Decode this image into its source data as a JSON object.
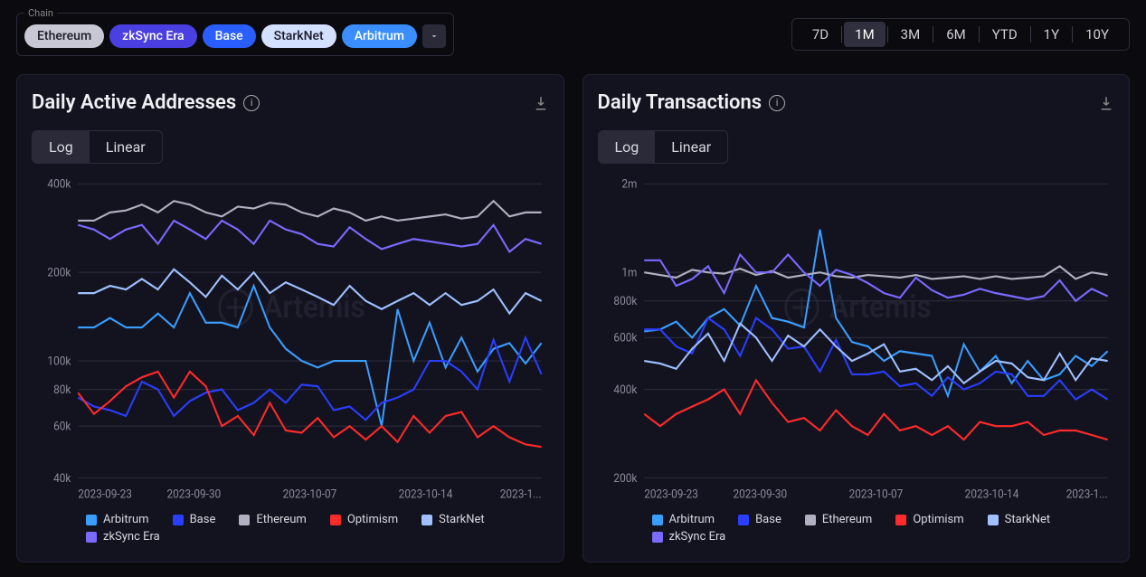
{
  "colors": {
    "bg": "#0a0a0f",
    "panel_bg": "#131320",
    "panel_border": "#222232",
    "grid": "#2a2a38",
    "tick_text": "#8a8a9a",
    "text": "#e5e5e8",
    "watermark": "#2a2a38"
  },
  "chain_filter": {
    "label": "Chain",
    "chips": [
      {
        "id": "ethereum",
        "label": "Ethereum",
        "bg": "#c8c8d4",
        "fg": "#1a1a28"
      },
      {
        "id": "zksync",
        "label": "zkSync Era",
        "bg": "#4a3fe0",
        "fg": "#ffffff"
      },
      {
        "id": "base",
        "label": "Base",
        "bg": "#2a5eff",
        "fg": "#ffffff"
      },
      {
        "id": "starknet",
        "label": "StarkNet",
        "bg": "#d4e0ff",
        "fg": "#1a1a28"
      },
      {
        "id": "arbitrum",
        "label": "Arbitrum",
        "bg": "#3a8eff",
        "fg": "#ffffff"
      }
    ]
  },
  "range_selector": {
    "options": [
      "7D",
      "1M",
      "3M",
      "6M",
      "YTD",
      "1Y",
      "10Y"
    ],
    "active": "1M"
  },
  "watermark_text": "Artemis",
  "scale_toggle": {
    "log": "Log",
    "linear": "Linear",
    "active": "Log"
  },
  "series_meta": [
    {
      "key": "arbitrum",
      "label": "Arbitrum",
      "color": "#3a9eff"
    },
    {
      "key": "base",
      "label": "Base",
      "color": "#2a3eff"
    },
    {
      "key": "ethereum",
      "label": "Ethereum",
      "color": "#b0b0c0"
    },
    {
      "key": "optimism",
      "label": "Optimism",
      "color": "#ff2a2a"
    },
    {
      "key": "starknet",
      "label": "StarkNet",
      "color": "#a0c0ff"
    },
    {
      "key": "zksync",
      "label": "zkSync Era",
      "color": "#7a6aff"
    }
  ],
  "panels": [
    {
      "id": "daa",
      "title": "Daily Active Addresses",
      "scale": "log",
      "ylim": [
        40000,
        400000
      ],
      "yticks": [
        {
          "v": 40000,
          "label": "40k"
        },
        {
          "v": 60000,
          "label": "60k"
        },
        {
          "v": 80000,
          "label": "80k"
        },
        {
          "v": 100000,
          "label": "100k"
        },
        {
          "v": 200000,
          "label": "200k"
        },
        {
          "v": 400000,
          "label": "400k"
        }
      ],
      "xlabels": [
        "2023-09-23",
        "2023-09-30",
        "2023-10-07",
        "2023-10-14",
        "2023-1..."
      ],
      "n_points": 30,
      "series": {
        "ethereum": [
          300000,
          300000,
          320000,
          325000,
          340000,
          320000,
          350000,
          340000,
          320000,
          310000,
          335000,
          330000,
          345000,
          340000,
          320000,
          310000,
          330000,
          320000,
          300000,
          310000,
          300000,
          305000,
          310000,
          315000,
          305000,
          310000,
          350000,
          310000,
          320000,
          320000
        ],
        "zksync": [
          290000,
          280000,
          260000,
          280000,
          290000,
          250000,
          300000,
          280000,
          260000,
          300000,
          280000,
          250000,
          300000,
          280000,
          270000,
          250000,
          245000,
          285000,
          260000,
          240000,
          250000,
          260000,
          255000,
          250000,
          245000,
          250000,
          290000,
          235000,
          260000,
          250000
        ],
        "starknet": [
          170000,
          170000,
          180000,
          175000,
          190000,
          175000,
          205000,
          185000,
          165000,
          195000,
          175000,
          200000,
          170000,
          185000,
          175000,
          165000,
          155000,
          180000,
          160000,
          150000,
          160000,
          170000,
          155000,
          170000,
          155000,
          160000,
          175000,
          145000,
          170000,
          160000
        ],
        "arbitrum": [
          130000,
          130000,
          140000,
          130000,
          130000,
          145000,
          130000,
          170000,
          135000,
          135000,
          130000,
          180000,
          130000,
          110000,
          100000,
          95000,
          100000,
          100000,
          100000,
          60000,
          150000,
          100000,
          135000,
          95000,
          120000,
          92000,
          110000,
          115000,
          98000,
          115000
        ],
        "base": [
          75000,
          70000,
          68000,
          65000,
          85000,
          80000,
          65000,
          73000,
          78000,
          80000,
          68000,
          72000,
          80000,
          72000,
          83000,
          82000,
          68000,
          70000,
          63000,
          72000,
          75000,
          80000,
          100000,
          100000,
          92000,
          80000,
          118000,
          85000,
          120000,
          90000
        ],
        "optimism": [
          78000,
          66000,
          73000,
          82000,
          88000,
          92000,
          75000,
          92000,
          82000,
          60000,
          65000,
          56000,
          72000,
          58000,
          57000,
          64000,
          55000,
          60000,
          54000,
          60000,
          53000,
          65000,
          57000,
          65000,
          67000,
          55000,
          60000,
          55000,
          52000,
          51000
        ]
      }
    },
    {
      "id": "dtx",
      "title": "Daily Transactions",
      "scale": "log",
      "ylim": [
        200000,
        2000000
      ],
      "yticks": [
        {
          "v": 200000,
          "label": "200k"
        },
        {
          "v": 400000,
          "label": "400k"
        },
        {
          "v": 600000,
          "label": "600k"
        },
        {
          "v": 800000,
          "label": "800k"
        },
        {
          "v": 1000000,
          "label": "1m"
        },
        {
          "v": 2000000,
          "label": "2m"
        }
      ],
      "xlabels": [
        "2023-09-23",
        "2023-09-30",
        "2023-10-07",
        "2023-10-14",
        "2023-1..."
      ],
      "n_points": 30,
      "series": {
        "ethereum": [
          1000000,
          980000,
          960000,
          1020000,
          1000000,
          990000,
          1030000,
          980000,
          1010000,
          960000,
          980000,
          1000000,
          970000,
          960000,
          980000,
          970000,
          960000,
          980000,
          950000,
          960000,
          970000,
          950000,
          970000,
          950000,
          960000,
          970000,
          1050000,
          950000,
          1000000,
          980000
        ],
        "zksync": [
          1100000,
          1100000,
          900000,
          950000,
          1050000,
          850000,
          1150000,
          1000000,
          1000000,
          1150000,
          1000000,
          900000,
          1020000,
          980000,
          920000,
          850000,
          820000,
          960000,
          870000,
          820000,
          840000,
          880000,
          850000,
          830000,
          810000,
          830000,
          940000,
          800000,
          880000,
          830000
        ],
        "starknet": [
          500000,
          490000,
          470000,
          550000,
          620000,
          500000,
          670000,
          600000,
          500000,
          610000,
          560000,
          640000,
          560000,
          500000,
          530000,
          570000,
          460000,
          470000,
          430000,
          480000,
          420000,
          460000,
          500000,
          490000,
          440000,
          430000,
          530000,
          430000,
          510000,
          500000
        ],
        "arbitrum": [
          630000,
          640000,
          680000,
          600000,
          700000,
          750000,
          660000,
          900000,
          700000,
          680000,
          650000,
          1400000,
          700000,
          580000,
          560000,
          500000,
          540000,
          530000,
          520000,
          380000,
          570000,
          460000,
          520000,
          420000,
          500000,
          430000,
          450000,
          520000,
          480000,
          540000
        ],
        "base": [
          640000,
          640000,
          560000,
          530000,
          700000,
          640000,
          520000,
          700000,
          640000,
          550000,
          560000,
          460000,
          590000,
          450000,
          450000,
          460000,
          410000,
          420000,
          380000,
          440000,
          400000,
          420000,
          460000,
          450000,
          380000,
          380000,
          430000,
          370000,
          400000,
          370000
        ],
        "optimism": [
          330000,
          300000,
          330000,
          350000,
          370000,
          400000,
          330000,
          430000,
          360000,
          310000,
          320000,
          290000,
          340000,
          300000,
          280000,
          330000,
          290000,
          300000,
          280000,
          300000,
          270000,
          310000,
          300000,
          300000,
          310000,
          280000,
          290000,
          290000,
          280000,
          270000
        ]
      }
    }
  ]
}
